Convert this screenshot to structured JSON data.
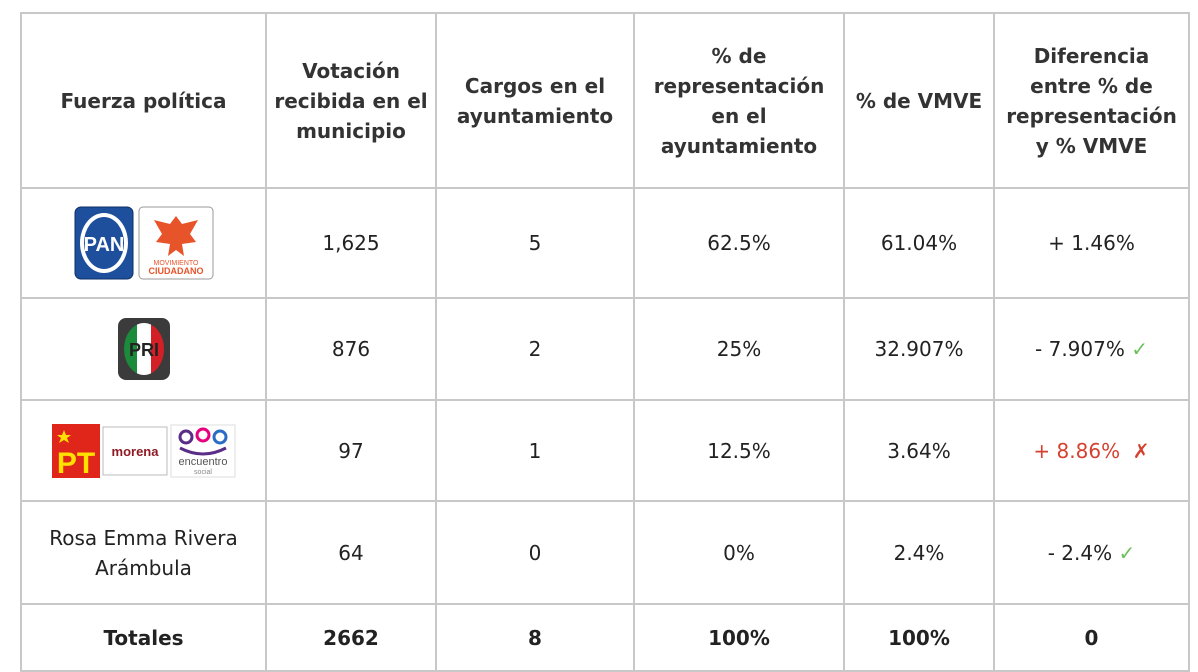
{
  "table": {
    "header": [
      "Fuerza política",
      "Votación recibida en el municipio",
      "Cargos en el ayuntamiento",
      "% de representación en el ayuntamiento",
      "% de VMVE",
      "Diferencia entre % de representación y % VMVE"
    ],
    "rows": [
      {
        "logos": [
          "PAN",
          "MOVIMIENTO",
          "CIUDADANO"
        ],
        "values": [
          "1,625",
          "5",
          "62.5%",
          "61.04%",
          "+ 1.46%"
        ]
      },
      {
        "logos": [
          "PRI"
        ],
        "values": [
          "876",
          "2",
          "25%",
          "32.907%",
          "- 7.907%"
        ],
        "status": "✓",
        "status_color": "#6cc15a"
      },
      {
        "logos": [
          "PT",
          "morena",
          "encuentro",
          "social"
        ],
        "values": [
          "97",
          "1",
          "12.5%",
          "3.64%",
          "+ 8.86%"
        ],
        "status": "✗",
        "status_color": "#d5402f",
        "diff_color": "#d5402f"
      },
      {
        "name": "Rosa Emma Rivera Arámbula",
        "values": [
          "64",
          "0",
          "0%",
          "2.4%",
          "- 2.4%"
        ],
        "status": "✓",
        "status_color": "#6cc15a"
      }
    ],
    "totals": [
      "Totales",
      "2662",
      "8",
      "100%",
      "100%",
      "0"
    ]
  }
}
